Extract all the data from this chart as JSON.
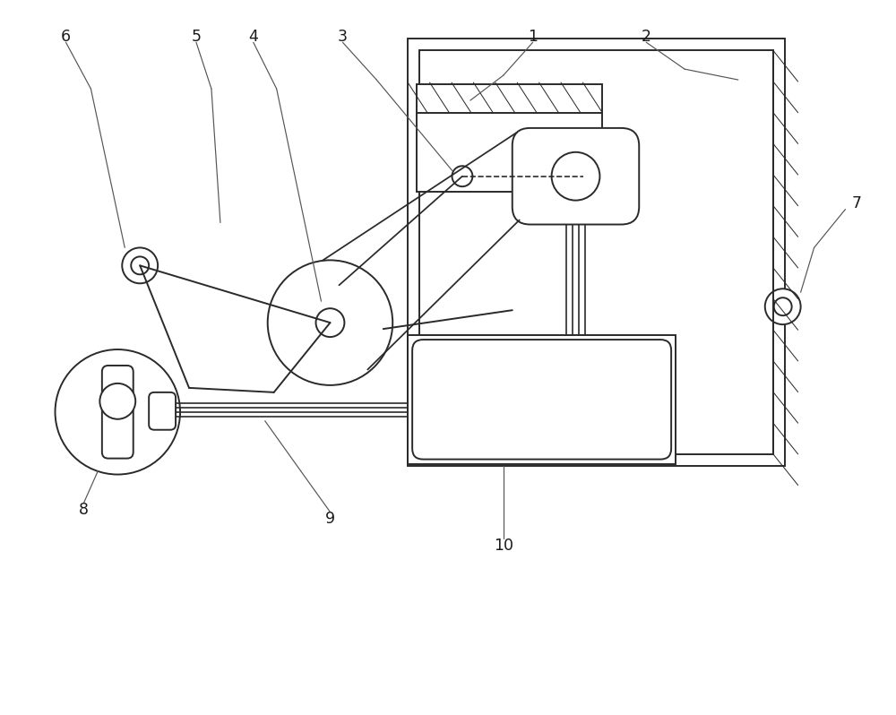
{
  "bg": "#ffffff",
  "lc": "#2a2a2a",
  "lw": 1.4,
  "lw_thin": 0.85,
  "label_fs": 12.5,
  "label_color": "#1a1a1a"
}
